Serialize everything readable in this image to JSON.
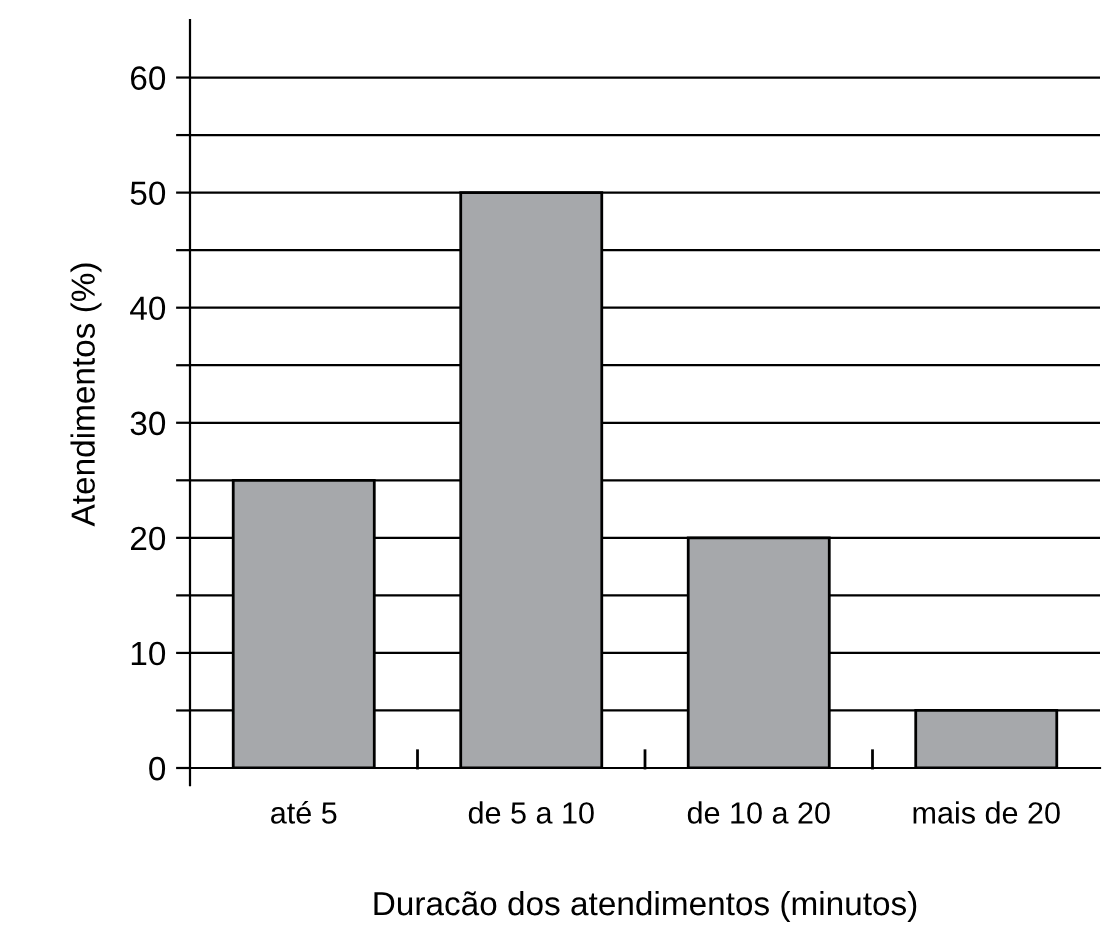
{
  "chart_data": {
    "type": "bar",
    "xlabel": "Duracão dos atendimentos (minutos)",
    "ylabel": "Atendimentos (%)",
    "categories": [
      "até 5",
      "de 5 a 10",
      "de 10 a 20",
      "mais de 20"
    ],
    "values": [
      25,
      50,
      20,
      5
    ],
    "color": "#a6a8ab",
    "ylim": [
      0,
      65
    ],
    "yticks": [
      0,
      {
        "value": 5,
        "label": null
      },
      10,
      {
        "value": 15,
        "label": null
      },
      20,
      {
        "value": 25,
        "label": null
      },
      30,
      {
        "value": 35,
        "label": null
      },
      40,
      {
        "value": 45,
        "label": null
      },
      50,
      {
        "value": 55,
        "label": null
      },
      60
    ],
    "grid": "y",
    "legend": false
  }
}
